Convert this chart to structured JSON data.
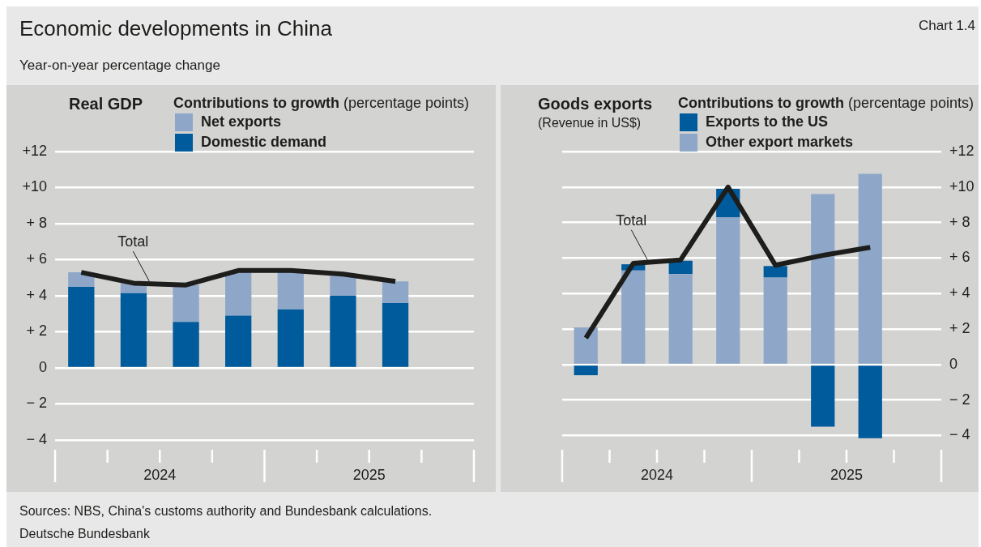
{
  "chart_data": [
    {
      "type": "other",
      "title": "Economic developments in China",
      "subtitle": "Year-on-year percentage change",
      "annotations": [
        "Chart 1.4",
        "Sources: NBS, China's customs authority and Bundesbank calculations.",
        "Deutsche Bundesbank"
      ]
    },
    {
      "type": "bar",
      "title": "Real GDP",
      "legend_title": "Contributions to growth (percentage points)",
      "categories": [
        null,
        null,
        null,
        null,
        null,
        null,
        null,
        null
      ],
      "stacked": true,
      "series": [
        {
          "name": "Domestic demand",
          "color": "#005b9c",
          "values": [
            4.5,
            4.15,
            2.55,
            2.9,
            3.25,
            4.0,
            3.6,
            null
          ]
        },
        {
          "name": "Net exports",
          "color": "#8ea7c9",
          "values": [
            0.8,
            0.55,
            2.05,
            2.4,
            2.05,
            1.1,
            1.2,
            null
          ]
        },
        {
          "name": "Total",
          "type": "line",
          "color": "#1d1d1b",
          "values": [
            5.3,
            4.7,
            4.6,
            5.4,
            5.4,
            5.2,
            4.8,
            null
          ]
        }
      ],
      "ylim": [
        -4,
        12
      ],
      "yticks": [
        {
          "value": -4,
          "label": "− 4"
        },
        {
          "value": -2,
          "label": "− 2"
        },
        0,
        {
          "value": 2,
          "label": "+ 2"
        },
        {
          "value": 4,
          "label": "+ 4"
        },
        {
          "value": 6,
          "label": "+ 6"
        },
        {
          "value": 8,
          "label": "+ 8"
        },
        {
          "value": 10,
          "label": "+10"
        },
        {
          "value": 12,
          "label": "+12"
        }
      ],
      "grid": "y",
      "legend": "top",
      "annotations": [
        "2024",
        "2025"
      ]
    },
    {
      "type": "bar",
      "title": "Goods exports",
      "subtitle": "(Revenue in US$)",
      "legend_title": "Contributions to growth (percentage points)",
      "categories": [
        null,
        null,
        null,
        null,
        null,
        null,
        null,
        null
      ],
      "stacked": true,
      "series": [
        {
          "name": "Other export markets",
          "color": "#8ea7c9",
          "axis": "y2",
          "values": [
            2.1,
            5.3,
            5.1,
            8.3,
            4.9,
            9.6,
            10.75,
            null
          ]
        },
        {
          "name": "Exports to the US",
          "color": "#005b9c",
          "axis": "y2",
          "values": [
            -0.6,
            0.35,
            0.75,
            1.6,
            0.65,
            -3.5,
            -4.15,
            null
          ]
        },
        {
          "name": "Total",
          "type": "line",
          "color": "#1d1d1b",
          "axis": "y2",
          "values": [
            1.5,
            5.7,
            5.9,
            10.0,
            5.6,
            6.15,
            6.6,
            null
          ]
        }
      ],
      "y2lim": [
        -4.25,
        12
      ],
      "y2ticks": [
        {
          "value": -4,
          "label": "− 4"
        },
        {
          "value": -2,
          "label": "− 2"
        },
        0,
        {
          "value": 2,
          "label": "+ 2"
        },
        {
          "value": 4,
          "label": "+ 4"
        },
        {
          "value": 6,
          "label": "+ 6"
        },
        {
          "value": 8,
          "label": "+ 8"
        },
        {
          "value": 10,
          "label": "+10"
        },
        {
          "value": 12,
          "label": "+12"
        }
      ],
      "grid": "y",
      "legend": "top",
      "annotations": [
        "2024",
        "2025"
      ]
    }
  ]
}
